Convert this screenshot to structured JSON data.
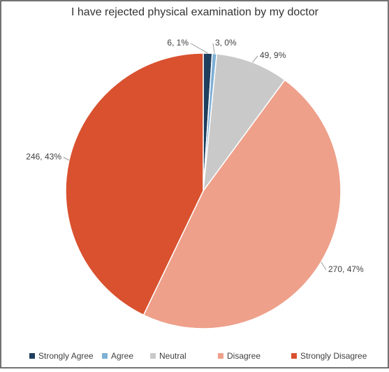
{
  "chart_data": {
    "type": "pie",
    "title": "I have rejected physical examination by my doctor",
    "categories": [
      "Strongly Agree",
      "Agree",
      "Neutral",
      "Disagree",
      "Strongly Disagree"
    ],
    "values": [
      6,
      3,
      49,
      270,
      246
    ],
    "value_labels": [
      "6, 1%",
      "3, 0%",
      "49, 9%",
      "270, 47%",
      "246, 43%"
    ],
    "colors": [
      "#1f3f5f",
      "#7fb0d6",
      "#c9c9c9",
      "#eea08a",
      "#d9512f"
    ],
    "legend": "bottom"
  }
}
